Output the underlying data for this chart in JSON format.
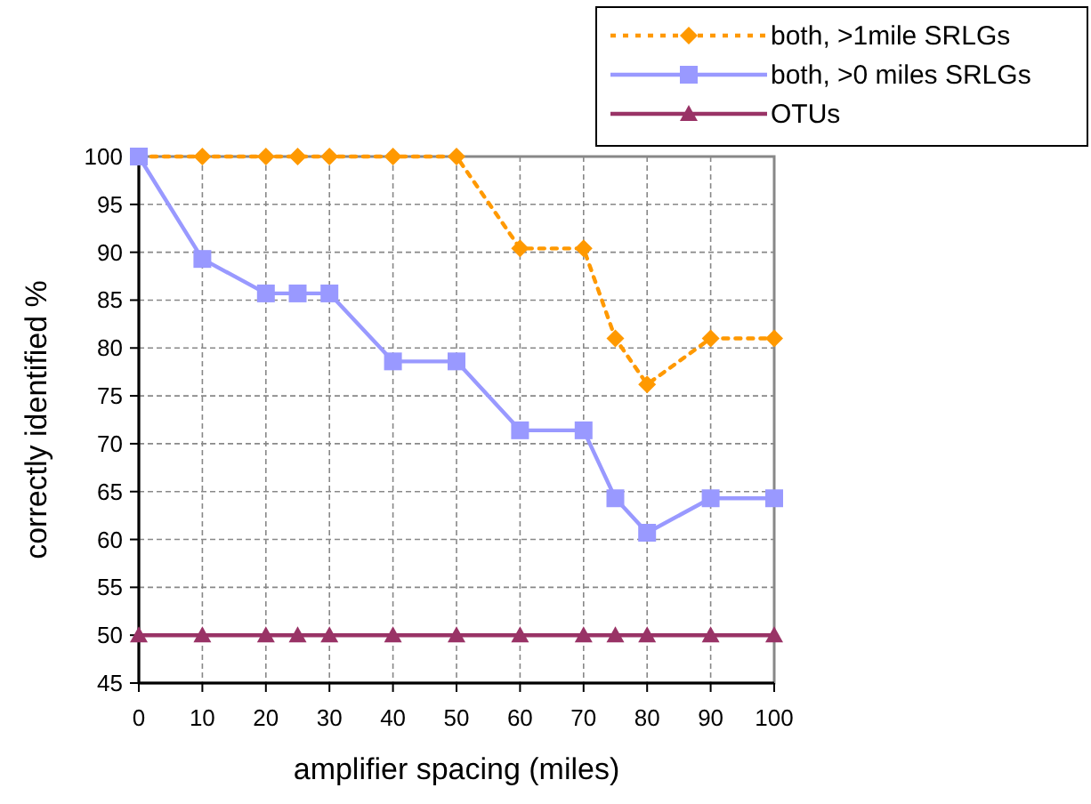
{
  "chart_data": {
    "type": "line",
    "xlabel": "amplifier spacing (miles)",
    "ylabel": "correctly identified %",
    "x": [
      0,
      10,
      20,
      25,
      30,
      40,
      50,
      60,
      70,
      75,
      80,
      90,
      100
    ],
    "xlim": [
      0,
      100
    ],
    "xticks": [
      0,
      10,
      20,
      30,
      40,
      50,
      60,
      70,
      80,
      90,
      100
    ],
    "ylim": [
      45,
      100
    ],
    "yticks": [
      45,
      50,
      55,
      60,
      65,
      70,
      75,
      80,
      85,
      90,
      95,
      100
    ],
    "grid": true,
    "legend": "top right",
    "series": [
      {
        "name": "both, >1mile SRLGs",
        "color": "#ff9900",
        "marker": "diamond",
        "line_style": "dotted",
        "values": [
          100,
          100,
          100,
          100,
          100,
          100,
          100,
          90.4,
          90.4,
          81,
          76.2,
          81,
          81
        ]
      },
      {
        "name": "both, >0 miles SRLGs",
        "color": "#9999ff",
        "marker": "square",
        "line_style": "solid",
        "values": [
          100,
          89.3,
          85.7,
          85.7,
          85.7,
          78.6,
          78.6,
          71.4,
          71.4,
          64.3,
          60.7,
          64.3,
          64.3
        ]
      },
      {
        "name": "OTUs",
        "color": "#993366",
        "marker": "triangle",
        "line_style": "solid",
        "values": [
          50,
          50,
          50,
          50,
          50,
          50,
          50,
          50,
          50,
          50,
          50,
          50,
          50
        ]
      }
    ]
  }
}
